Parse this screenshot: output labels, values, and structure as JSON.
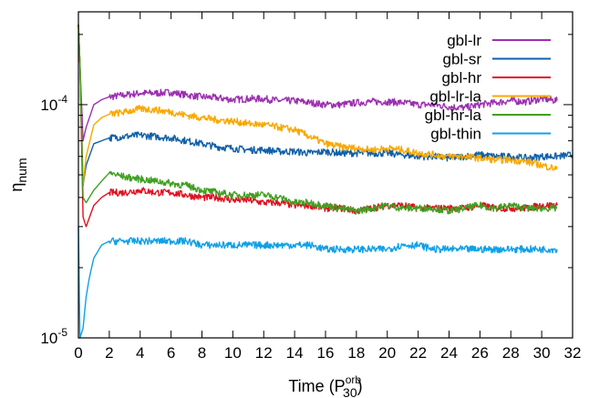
{
  "chart_data": {
    "type": "line",
    "xlabel": "Time (P",
    "xlabel_sup": "orb",
    "xlabel_sub": "30",
    "xlabel_close": ")",
    "ylabel": "η",
    "ylabel_sub": "num",
    "yscale": "log",
    "xlim": [
      0,
      32
    ],
    "ylim": [
      1e-05,
      0.00025
    ],
    "x_ticks": [
      0,
      2,
      4,
      6,
      8,
      10,
      12,
      14,
      16,
      18,
      20,
      22,
      24,
      26,
      28,
      30,
      32
    ],
    "y_tick_labels": [
      {
        "value": 1e-05,
        "base": "10",
        "exp": "-5"
      },
      {
        "value": 0.0001,
        "base": "10",
        "exp": "-4"
      }
    ],
    "grid": false,
    "legend_position": "top-right",
    "series": [
      {
        "name": "gbl-lr",
        "color": "#9b30b0",
        "x": [
          0,
          0.1,
          0.3,
          0.5,
          1,
          1.5,
          2,
          3,
          4,
          5,
          6,
          7,
          8,
          9,
          10,
          11,
          12,
          13,
          14,
          15,
          16,
          17,
          18,
          19,
          20,
          21,
          22,
          23,
          24,
          25,
          26,
          27,
          28,
          29,
          30,
          31
        ],
        "y": [
          0.00022,
          0.00015,
          7e-05,
          8e-05,
          0.0001,
          0.000105,
          0.000108,
          0.00011,
          0.000112,
          0.000112,
          0.000113,
          0.00011,
          0.000108,
          0.000107,
          0.000105,
          0.000106,
          0.000106,
          0.000104,
          0.000104,
          0.000102,
          0.0001,
          0.0001,
          0.000102,
          0.000103,
          0.000103,
          0.000102,
          0.0001,
          0.0001,
          9.8e-05,
          9.7e-05,
          0.0001,
          0.000102,
          0.000104,
          0.000103,
          0.000106,
          0.000104
        ]
      },
      {
        "name": "gbl-sr",
        "color": "#1060a8",
        "x": [
          0,
          0.1,
          0.3,
          0.5,
          1,
          1.5,
          2,
          3,
          4,
          5,
          6,
          7,
          8,
          9,
          10,
          11,
          12,
          13,
          14,
          15,
          16,
          17,
          18,
          19,
          20,
          21,
          22,
          23,
          24,
          25,
          26,
          27,
          28,
          29,
          30,
          31,
          32
        ],
        "y": [
          0.00022,
          0.00015,
          4.5e-05,
          5.5e-05,
          6.8e-05,
          7e-05,
          7.2e-05,
          7.3e-05,
          7.4e-05,
          7.3e-05,
          7.2e-05,
          7e-05,
          6.8e-05,
          6.6e-05,
          6.5e-05,
          6.4e-05,
          6.4e-05,
          6.3e-05,
          6.3e-05,
          6.2e-05,
          6.3e-05,
          6.2e-05,
          6.2e-05,
          6.2e-05,
          6.2e-05,
          6.1e-05,
          6e-05,
          6e-05,
          5.9e-05,
          6e-05,
          6.1e-05,
          6e-05,
          6e-05,
          5.9e-05,
          6e-05,
          6e-05,
          6.1e-05
        ]
      },
      {
        "name": "gbl-hr",
        "color": "#e01020",
        "x": [
          0,
          0.1,
          0.3,
          0.5,
          1,
          1.5,
          2,
          3,
          4,
          5,
          6,
          7,
          8,
          9,
          10,
          11,
          12,
          13,
          14,
          15,
          16,
          17,
          18,
          19,
          20,
          21,
          22,
          23,
          24,
          25,
          26,
          27,
          28,
          29,
          30,
          31
        ],
        "y": [
          0.00022,
          0.00015,
          3.3e-05,
          3e-05,
          3.7e-05,
          4e-05,
          4.2e-05,
          4.2e-05,
          4.3e-05,
          4.2e-05,
          4.2e-05,
          4.1e-05,
          4e-05,
          4e-05,
          3.9e-05,
          3.9e-05,
          3.8e-05,
          3.8e-05,
          3.7e-05,
          3.7e-05,
          3.6e-05,
          3.6e-05,
          3.5e-05,
          3.6e-05,
          3.7e-05,
          3.7e-05,
          3.6e-05,
          3.6e-05,
          3.6e-05,
          3.6e-05,
          3.7e-05,
          3.6e-05,
          3.6e-05,
          3.6e-05,
          3.7e-05,
          3.7e-05
        ]
      },
      {
        "name": "gbl-lr-la",
        "color": "#f8a800",
        "x": [
          0,
          0.1,
          0.3,
          0.5,
          1,
          1.5,
          2,
          3,
          4,
          5,
          6,
          7,
          8,
          9,
          10,
          11,
          12,
          13,
          14,
          15,
          16,
          17,
          18,
          19,
          20,
          21,
          22,
          23,
          24,
          25,
          26,
          27,
          28,
          29,
          30,
          31
        ],
        "y": [
          0.00022,
          0.00015,
          4.5e-05,
          6e-05,
          8.2e-05,
          8.8e-05,
          9.1e-05,
          9.3e-05,
          9.6e-05,
          9.5e-05,
          9.3e-05,
          9e-05,
          8.8e-05,
          8.6e-05,
          8.5e-05,
          8.3e-05,
          8.2e-05,
          8e-05,
          7.8e-05,
          7.3e-05,
          6.8e-05,
          6.6e-05,
          6.5e-05,
          6.4e-05,
          6.5e-05,
          6.4e-05,
          6.2e-05,
          6.1e-05,
          6e-05,
          6e-05,
          5.9e-05,
          5.8e-05,
          5.8e-05,
          5.7e-05,
          5.5e-05,
          5.3e-05
        ]
      },
      {
        "name": "gbl-hr-la",
        "color": "#40a020",
        "x": [
          0,
          0.1,
          0.3,
          0.5,
          1,
          1.5,
          2,
          3,
          4,
          5,
          6,
          7,
          8,
          9,
          10,
          11,
          12,
          13,
          14,
          15,
          16,
          17,
          18,
          19,
          20,
          21,
          22,
          23,
          24,
          25,
          26,
          27,
          28,
          29,
          30,
          31
        ],
        "y": [
          0.00022,
          0.00015,
          4e-05,
          3.8e-05,
          4.3e-05,
          4.7e-05,
          5.1e-05,
          4.9e-05,
          4.8e-05,
          4.7e-05,
          4.6e-05,
          4.5e-05,
          4.3e-05,
          4.2e-05,
          4.1e-05,
          4.1e-05,
          4.1e-05,
          4e-05,
          3.8e-05,
          3.8e-05,
          3.7e-05,
          3.6e-05,
          3.5e-05,
          3.6e-05,
          3.7e-05,
          3.6e-05,
          3.6e-05,
          3.6e-05,
          3.5e-05,
          3.6e-05,
          3.7e-05,
          3.6e-05,
          3.7e-05,
          3.6e-05,
          3.6e-05,
          3.6e-05
        ]
      },
      {
        "name": "gbl-thin",
        "color": "#10a0e8",
        "x": [
          0,
          0.1,
          0.3,
          0.5,
          0.7,
          1,
          1.5,
          2,
          3,
          4,
          5,
          6,
          7,
          8,
          9,
          10,
          11,
          12,
          13,
          14,
          15,
          16,
          17,
          18,
          19,
          20,
          21,
          22,
          23,
          24,
          25,
          26,
          27,
          28,
          29,
          30,
          31
        ],
        "y": [
          3e-05,
          1e-05,
          1.1e-05,
          1.5e-05,
          1.8e-05,
          2.2e-05,
          2.5e-05,
          2.6e-05,
          2.6e-05,
          2.6e-05,
          2.6e-05,
          2.6e-05,
          2.6e-05,
          2.5e-05,
          2.5e-05,
          2.5e-05,
          2.5e-05,
          2.5e-05,
          2.5e-05,
          2.5e-05,
          2.5e-05,
          2.4e-05,
          2.4e-05,
          2.4e-05,
          2.4e-05,
          2.4e-05,
          2.5e-05,
          2.5e-05,
          2.4e-05,
          2.4e-05,
          2.4e-05,
          2.4e-05,
          2.4e-05,
          2.4e-05,
          2.4e-05,
          2.4e-05,
          2.4e-05
        ]
      }
    ]
  }
}
